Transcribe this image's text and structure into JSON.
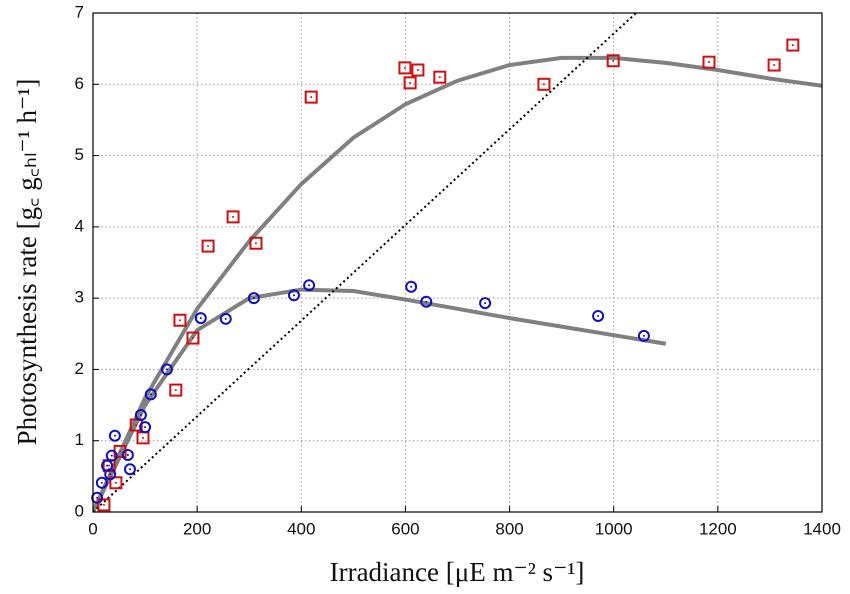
{
  "chart_data": {
    "type": "scatter",
    "xlabel": "Irradiance [μE m⁻² s⁻¹]",
    "ylabel": "Photosynthesis rate [g꜀ g꜀ₕₗ⁻¹ h⁻¹]",
    "xlim": [
      0,
      1400
    ],
    "ylim": [
      0,
      7
    ],
    "xticks": [
      0,
      200,
      400,
      600,
      800,
      1000,
      1200,
      1400
    ],
    "yticks": [
      0,
      1,
      2,
      3,
      4,
      5,
      6,
      7
    ],
    "grid": true,
    "series": [
      {
        "color": "#cc1111",
        "marker": "square",
        "x": [
          21,
          31,
          44,
          52,
          83,
          96,
          159,
          167,
          192,
          221,
          269,
          313,
          419,
          599,
          609,
          624,
          666,
          866,
          999,
          1183,
          1308,
          1344
        ],
        "values": [
          0.1,
          0.65,
          0.41,
          0.85,
          1.22,
          1.04,
          1.71,
          2.69,
          2.44,
          3.73,
          4.14,
          3.77,
          5.82,
          6.23,
          6.02,
          6.2,
          6.1,
          6.0,
          6.33,
          6.31,
          6.27,
          6.55
        ]
      },
      {
        "color": "#1111bb",
        "marker": "circle",
        "x": [
          8,
          17,
          27,
          33,
          36,
          42,
          67,
          71,
          92,
          100,
          111,
          142,
          207,
          255,
          309,
          386,
          415,
          611,
          640,
          753,
          970,
          1058
        ],
        "values": [
          0.2,
          0.41,
          0.65,
          0.53,
          0.79,
          1.07,
          0.8,
          0.6,
          1.36,
          1.19,
          1.65,
          2.0,
          2.72,
          2.71,
          3.0,
          3.04,
          3.18,
          3.16,
          2.95,
          2.93,
          2.75,
          2.47
        ]
      }
    ],
    "lines": [
      {
        "color": "#808080",
        "style": "solid",
        "x": [
          0,
          100,
          200,
          300,
          400,
          500,
          600,
          700,
          800,
          900,
          1000,
          1100,
          1200,
          1300,
          1400
        ],
        "values": [
          0,
          1.6,
          2.85,
          3.8,
          4.6,
          5.25,
          5.72,
          6.05,
          6.27,
          6.37,
          6.37,
          6.3,
          6.2,
          6.08,
          5.98
        ]
      },
      {
        "color": "#808080",
        "style": "solid",
        "x": [
          0,
          100,
          200,
          300,
          400,
          500,
          600,
          700,
          800,
          900,
          1000,
          1100
        ],
        "values": [
          0,
          1.5,
          2.55,
          3.0,
          3.12,
          3.1,
          2.98,
          2.85,
          2.72,
          2.6,
          2.48,
          2.36
        ]
      },
      {
        "color": "#000000",
        "style": "dotted",
        "x": [
          0,
          1043
        ],
        "values": [
          0,
          7
        ]
      }
    ]
  }
}
